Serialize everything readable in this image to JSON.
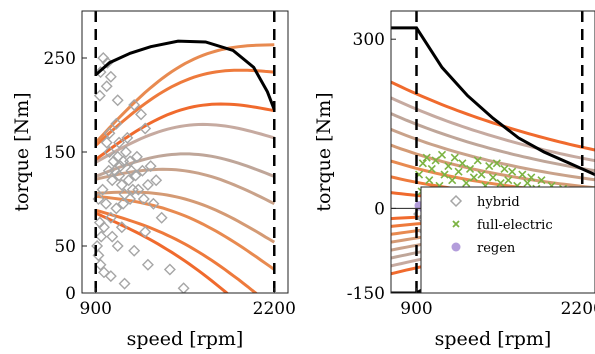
{
  "chart_data": [
    {
      "type": "scatter",
      "xlabel": "speed [rpm]",
      "ylabel": "torque [Nm]",
      "xlim": [
        800,
        2300
      ],
      "ylim": [
        0,
        300
      ],
      "xticks": [
        900,
        2200
      ],
      "yticks": [
        0,
        50,
        150,
        250
      ],
      "xtick_labels": [
        "900",
        "2200"
      ],
      "ytick_labels": [
        "0",
        "50",
        "150",
        "250"
      ],
      "speed_limits_rpm": [
        900,
        2200
      ],
      "max_torque_curve": {
        "x": [
          900,
          1000,
          1150,
          1300,
          1500,
          1700,
          1900,
          2050,
          2150,
          2200
        ],
        "y": [
          232,
          245,
          255,
          262,
          268,
          267,
          258,
          240,
          214,
          195
        ]
      },
      "series": [
        {
          "name": "hybrid",
          "marker": "diamond",
          "color": "#a6a6a6",
          "points": [
            [
              955,
              250
            ],
            [
              985,
              245
            ],
            [
              935,
              235
            ],
            [
              1010,
              230
            ],
            [
              930,
              210
            ],
            [
              980,
              220
            ],
            [
              1060,
              205
            ],
            [
              1180,
              200
            ],
            [
              1230,
              190
            ],
            [
              1260,
              175
            ],
            [
              1050,
              180
            ],
            [
              1000,
              170
            ],
            [
              1070,
              160
            ],
            [
              1120,
              150
            ],
            [
              1150,
              140
            ],
            [
              1190,
              125
            ],
            [
              1210,
              110
            ],
            [
              1250,
              100
            ],
            [
              1320,
              95
            ],
            [
              1100,
              95
            ],
            [
              1050,
              90
            ],
            [
              1010,
              80
            ],
            [
              960,
              70
            ],
            [
              940,
              60
            ],
            [
              910,
              50
            ],
            [
              920,
              40
            ],
            [
              935,
              30
            ],
            [
              960,
              22
            ],
            [
              1010,
              18
            ],
            [
              1110,
              10
            ],
            [
              1020,
              120
            ],
            [
              1040,
              130
            ],
            [
              1080,
              135
            ],
            [
              1060,
              145
            ],
            [
              1000,
              150
            ],
            [
              980,
              160
            ],
            [
              1130,
              165
            ],
            [
              1160,
              130
            ],
            [
              1200,
              145
            ],
            [
              1240,
              130
            ],
            [
              1280,
              115
            ],
            [
              1300,
              135
            ],
            [
              1340,
              120
            ],
            [
              1380,
              80
            ],
            [
              1260,
              65
            ],
            [
              1180,
              45
            ],
            [
              1280,
              30
            ],
            [
              1440,
              25
            ],
            [
              1540,
              5
            ],
            [
              920,
              100
            ],
            [
              950,
              110
            ],
            [
              975,
              95
            ],
            [
              1090,
              115
            ],
            [
              1110,
              105
            ],
            [
              1150,
              100
            ],
            [
              1020,
              60
            ],
            [
              1060,
              50
            ],
            [
              1090,
              70
            ],
            [
              930,
              75
            ],
            [
              995,
              130
            ],
            [
              1030,
              140
            ],
            [
              1070,
              125
            ],
            [
              1100,
              140
            ],
            [
              1140,
              120
            ],
            [
              1170,
              110
            ]
          ]
        }
      ]
    },
    {
      "type": "scatter",
      "xlabel": "speed [rpm]",
      "ylabel": "torque [Nm]",
      "xlim": [
        700,
        2300
      ],
      "ylim": [
        -150,
        350
      ],
      "xticks": [
        900,
        2200
      ],
      "yticks": [
        -150,
        0,
        300
      ],
      "xtick_labels": [
        "900",
        "2200"
      ],
      "ytick_labels": [
        "-150",
        "0",
        "300"
      ],
      "speed_limits_rpm": [
        900,
        2200
      ],
      "max_torque_curve": {
        "x": [
          700,
          900,
          1100,
          1300,
          1500,
          1700,
          1900,
          2100,
          2300
        ],
        "y": [
          320,
          320,
          250,
          200,
          160,
          125,
          100,
          80,
          60
        ]
      },
      "min_torque_curve": {
        "x": [
          700,
          900,
          1100,
          1300,
          1500,
          1700,
          1900,
          2100,
          2300
        ],
        "y": [
          -150,
          -150,
          -125,
          -110,
          -100,
          -95,
          -90,
          -80,
          -75
        ]
      },
      "legend": {
        "position": "bottom-right",
        "entries": [
          "hybrid",
          "full-electric",
          "regen"
        ]
      },
      "series": [
        {
          "name": "hybrid",
          "marker": "diamond",
          "color": "#a6a6a6",
          "points": [
            [
              920,
              -10
            ],
            [
              950,
              -18
            ],
            [
              980,
              -25
            ],
            [
              1010,
              -15
            ],
            [
              1040,
              -30
            ],
            [
              1060,
              -20
            ],
            [
              1090,
              -12
            ],
            [
              1110,
              -28
            ],
            [
              1140,
              -22
            ],
            [
              1170,
              -35
            ],
            [
              1200,
              -18
            ],
            [
              1230,
              -26
            ],
            [
              1260,
              -14
            ],
            [
              1300,
              -30
            ],
            [
              1340,
              -20
            ],
            [
              1380,
              -25
            ],
            [
              1420,
              -40
            ],
            [
              1460,
              -30
            ],
            [
              1500,
              -22
            ],
            [
              1560,
              -35
            ],
            [
              1620,
              -28
            ],
            [
              1680,
              -38
            ],
            [
              1740,
              -30
            ],
            [
              1800,
              -45
            ],
            [
              1860,
              -32
            ],
            [
              1920,
              -40
            ],
            [
              1980,
              -35
            ],
            [
              2030,
              -28
            ],
            [
              960,
              -40
            ],
            [
              1020,
              -45
            ],
            [
              1080,
              -38
            ],
            [
              1150,
              -45
            ]
          ]
        },
        {
          "name": "full-electric",
          "marker": "x",
          "color": "#7cb342",
          "points": [
            [
              920,
              60
            ],
            [
              950,
              80
            ],
            [
              980,
              90
            ],
            [
              1000,
              50
            ],
            [
              1020,
              70
            ],
            [
              1050,
              85
            ],
            [
              1080,
              40
            ],
            [
              1100,
              95
            ],
            [
              1120,
              60
            ],
            [
              1150,
              75
            ],
            [
              1180,
              50
            ],
            [
              1200,
              90
            ],
            [
              1230,
              65
            ],
            [
              1260,
              80
            ],
            [
              1290,
              45
            ],
            [
              1320,
              70
            ],
            [
              1350,
              55
            ],
            [
              1380,
              85
            ],
            [
              1410,
              60
            ],
            [
              1440,
              40
            ],
            [
              1470,
              75
            ],
            [
              1500,
              55
            ],
            [
              1530,
              80
            ],
            [
              1560,
              45
            ],
            [
              1590,
              70
            ],
            [
              1620,
              50
            ],
            [
              1650,
              65
            ],
            [
              1690,
              40
            ],
            [
              1730,
              60
            ],
            [
              1770,
              45
            ],
            [
              1800,
              55
            ],
            [
              1840,
              35
            ],
            [
              1880,
              50
            ],
            [
              1920,
              30
            ],
            [
              1960,
              40
            ],
            [
              2000,
              25
            ],
            [
              2050,
              35
            ],
            [
              2100,
              20
            ],
            [
              940,
              30
            ],
            [
              990,
              20
            ],
            [
              1060,
              25
            ],
            [
              1130,
              20
            ],
            [
              1210,
              30
            ],
            [
              1290,
              20
            ],
            [
              1370,
              25
            ],
            [
              1460,
              20
            ],
            [
              1540,
              30
            ],
            [
              1620,
              22
            ],
            [
              1700,
              28
            ],
            [
              1780,
              18
            ]
          ]
        },
        {
          "name": "regen",
          "marker": "circle",
          "color": "#b39ddb",
          "points": [
            [
              920,
              5
            ],
            [
              960,
              -2
            ],
            [
              1000,
              3
            ],
            [
              1040,
              -4
            ],
            [
              1080,
              2
            ],
            [
              1120,
              -3
            ],
            [
              1160,
              4
            ],
            [
              1200,
              -2
            ],
            [
              1240,
              3
            ],
            [
              1280,
              -5
            ],
            [
              1320,
              1
            ],
            [
              1360,
              -3
            ],
            [
              1400,
              2
            ],
            [
              1440,
              -4
            ],
            [
              1480,
              0
            ],
            [
              1520,
              -2
            ],
            [
              1560,
              3
            ],
            [
              1600,
              -3
            ],
            [
              1640,
              1
            ],
            [
              1680,
              -2
            ],
            [
              1720,
              2
            ],
            [
              1760,
              -3
            ],
            [
              1800,
              0
            ],
            [
              1840,
              -2
            ],
            [
              1880,
              1
            ],
            [
              1920,
              -1
            ],
            [
              1960,
              0
            ],
            [
              2000,
              -2
            ],
            [
              2040,
              1
            ],
            [
              2080,
              -1
            ],
            [
              2120,
              0
            ],
            [
              2160,
              -1
            ],
            [
              2200,
              0
            ]
          ]
        }
      ]
    }
  ]
}
